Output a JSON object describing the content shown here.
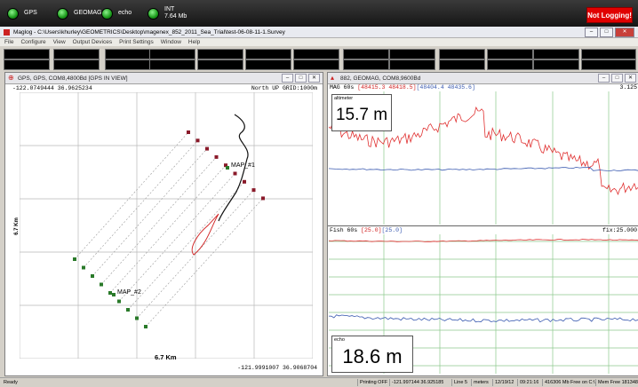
{
  "status_indicators": [
    {
      "label": "GPS",
      "sub": ""
    },
    {
      "label": "GEOMAG",
      "sub": ""
    },
    {
      "label": "echo",
      "sub": ""
    },
    {
      "label": "INT",
      "sub": "7.64 Mb"
    }
  ],
  "not_logging": "Not Logging!",
  "window_title": "Maglog - C:\\Users\\khurley\\GEOMETRICS\\Desktop\\magenex_852_2011_Sea_Trial\\test-06-08-11-1.Survey",
  "menu": [
    "File",
    "Configure",
    "View",
    "Output Devices",
    "Print Settings",
    "Window",
    "Help"
  ],
  "map_panel": {
    "title": "GPS, GPS, COM8,4800Bd [GPS IN VIEW]",
    "top_left_coords": "-122.0749444 36.9625234",
    "top_right": "North UP GRID:1000m",
    "bottom_right_coords": "-121.9991007 36.9068704",
    "y_scale": "6.7 Km",
    "x_scale": "6.7 Km",
    "markers": [
      "MAP_#1",
      "MAP_#2"
    ]
  },
  "mag_panel": {
    "title": "882, GEOMAG, COM8,9600Bd",
    "mag_header_prefix": "MAG  60s",
    "mag_range_red": "[48415.3 48418.5]",
    "mag_range_blue": "[48404.4 48435.6]",
    "mag_fix": "3.125",
    "fish_header_prefix": "Fish  60s",
    "fish_range_red": "[25.0]",
    "fish_range_blue": "[25.0]",
    "fish_fix": "fix:25.000",
    "altimeter_label": "altimeter",
    "altimeter_value": "15.7 m",
    "echo_label": "echo",
    "echo_value": "18.6 m"
  },
  "statusbar": {
    "ready": "Ready",
    "printing": "Printing OFF",
    "coords": "-121.997144  36.925185",
    "line": "Line 5",
    "units": "meters",
    "date": "12/19/12",
    "time": "09:21:16",
    "disk": "416306 Mb Free on C:\\",
    "mem": "Mem Free 1813484 K"
  },
  "colors": {
    "red_trace": "#e03030",
    "blue_trace": "#3a5ab0",
    "grid_green": "#7ec07e",
    "not_logging": "#e00000"
  }
}
